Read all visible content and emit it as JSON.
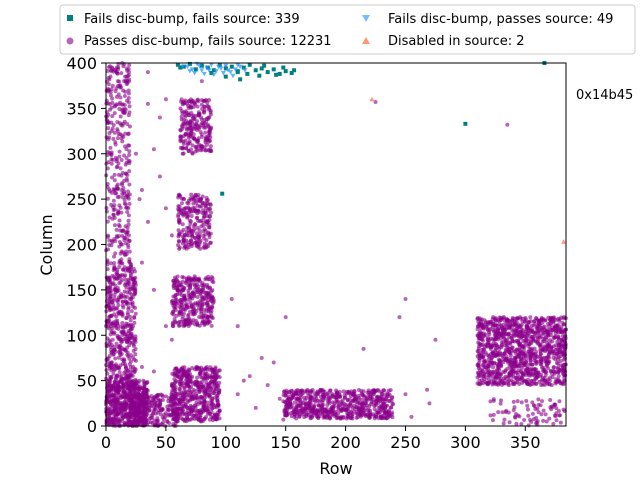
{
  "chart_data": {
    "type": "scatter",
    "xlabel": "Row",
    "ylabel": "Column",
    "xlim": [
      0,
      384
    ],
    "ylim": [
      0,
      400
    ],
    "xticks": [
      0,
      50,
      100,
      150,
      200,
      250,
      300,
      350
    ],
    "yticks": [
      0,
      50,
      100,
      150,
      200,
      250,
      300,
      350,
      400
    ],
    "grid": false,
    "legend_position": "top",
    "annotation": "0x14b45",
    "series": [
      {
        "name": "Fails disc-bump, fails source: 339",
        "marker": "square",
        "color": "#008080",
        "points": [
          [
            60,
            398
          ],
          [
            65,
            396
          ],
          [
            70,
            399
          ],
          [
            75,
            393
          ],
          [
            80,
            397
          ],
          [
            85,
            395
          ],
          [
            90,
            392
          ],
          [
            95,
            398
          ],
          [
            100,
            394
          ],
          [
            105,
            396
          ],
          [
            110,
            391
          ],
          [
            115,
            395
          ],
          [
            120,
            398
          ],
          [
            125,
            392
          ],
          [
            130,
            394
          ],
          [
            135,
            390
          ],
          [
            140,
            393
          ],
          [
            145,
            388
          ],
          [
            150,
            391
          ],
          [
            155,
            389
          ],
          [
            118,
            388
          ],
          [
            110,
            390
          ],
          [
            100,
            385
          ],
          [
            112,
            382
          ],
          [
            128,
            386
          ],
          [
            142,
            387
          ],
          [
            300,
            333
          ],
          [
            97,
            256
          ],
          [
            366,
            400
          ],
          [
            62,
            395
          ],
          [
            88,
            389
          ],
          [
            132,
            397
          ],
          [
            148,
            395
          ],
          [
            157,
            392
          ]
        ],
        "clusters": []
      },
      {
        "name": "Passes disc-bump, fails source: 12231",
        "marker": "circle",
        "color": "#8b008b",
        "points": [
          [
            335,
            332
          ],
          [
            225,
            357
          ],
          [
            250,
            140
          ],
          [
            245,
            120
          ],
          [
            268,
            40
          ],
          [
            270,
            25
          ],
          [
            215,
            85
          ],
          [
            275,
            95
          ],
          [
            255,
            10
          ],
          [
            250,
            35
          ],
          [
            230,
            38
          ],
          [
            150,
            120
          ],
          [
            140,
            70
          ],
          [
            145,
            30
          ],
          [
            148,
            7
          ],
          [
            60,
            150
          ],
          [
            55,
            95
          ],
          [
            40,
            150
          ],
          [
            30,
            260
          ],
          [
            35,
            225
          ],
          [
            20,
            330
          ],
          [
            25,
            300
          ],
          [
            10,
            380
          ],
          [
            5,
            395
          ],
          [
            15,
            270
          ],
          [
            35,
            355
          ],
          [
            40,
            305
          ],
          [
            45,
            275
          ],
          [
            50,
            240
          ],
          [
            55,
            210
          ],
          [
            50,
            360
          ],
          [
            45,
            340
          ],
          [
            35,
            390
          ],
          [
            28,
            250
          ],
          [
            110,
            35
          ],
          [
            120,
            55
          ],
          [
            130,
            75
          ],
          [
            105,
            140
          ],
          [
            50,
            110
          ],
          [
            40,
            60
          ],
          [
            55,
            30
          ],
          [
            30,
            65
          ],
          [
            65,
            110
          ],
          [
            110,
            110
          ],
          [
            115,
            50
          ],
          [
            125,
            20
          ],
          [
            135,
            45
          ],
          [
            100,
            395
          ],
          [
            80,
            380
          ],
          [
            30,
            180
          ]
        ],
        "clusters": [
          {
            "x": [
              0,
              35
            ],
            "y": [
              0,
              50
            ],
            "n": 600
          },
          {
            "x": [
              0,
              25
            ],
            "y": [
              50,
              180
            ],
            "n": 450
          },
          {
            "x": [
              0,
              20
            ],
            "y": [
              180,
              400
            ],
            "n": 320
          },
          {
            "x": [
              20,
              60
            ],
            "y": [
              0,
              35
            ],
            "n": 220
          },
          {
            "x": [
              55,
              95
            ],
            "y": [
              5,
              65
            ],
            "n": 520
          },
          {
            "x": [
              55,
              90
            ],
            "y": [
              110,
              165
            ],
            "n": 330
          },
          {
            "x": [
              60,
              88
            ],
            "y": [
              195,
              255
            ],
            "n": 230
          },
          {
            "x": [
              62,
              88
            ],
            "y": [
              300,
              360
            ],
            "n": 230
          },
          {
            "x": [
              148,
              240
            ],
            "y": [
              8,
              40
            ],
            "n": 620
          },
          {
            "x": [
              310,
              384
            ],
            "y": [
              45,
              120
            ],
            "n": 1100
          },
          {
            "x": [
              320,
              384
            ],
            "y": [
              0,
              30
            ],
            "n": 80
          }
        ]
      },
      {
        "name": "Fails disc-bump, passes source: 49",
        "marker": "triangle-down",
        "color": "#1e90ff",
        "points": [
          [
            68,
            396
          ],
          [
            72,
            393
          ],
          [
            76,
            399
          ],
          [
            80,
            392
          ],
          [
            84,
            395
          ],
          [
            88,
            398
          ],
          [
            92,
            391
          ],
          [
            96,
            394
          ],
          [
            100,
            397
          ],
          [
            104,
            390
          ],
          [
            108,
            393
          ],
          [
            112,
            396
          ],
          [
            74,
            389
          ],
          [
            82,
            388
          ],
          [
            90,
            387
          ],
          [
            98,
            389
          ],
          [
            106,
            386
          ],
          [
            78,
            397
          ],
          [
            86,
            392
          ],
          [
            94,
            396
          ],
          [
            102,
            392
          ],
          [
            110,
            398
          ],
          [
            116,
            392
          ],
          [
            70,
            391
          ],
          [
            64,
            396
          ]
        ],
        "clusters": []
      },
      {
        "name": "Disabled in source: 2",
        "marker": "triangle-up",
        "color": "#ff7f50",
        "points": [
          [
            222,
            360
          ],
          [
            382,
            203
          ]
        ],
        "clusters": []
      }
    ]
  }
}
